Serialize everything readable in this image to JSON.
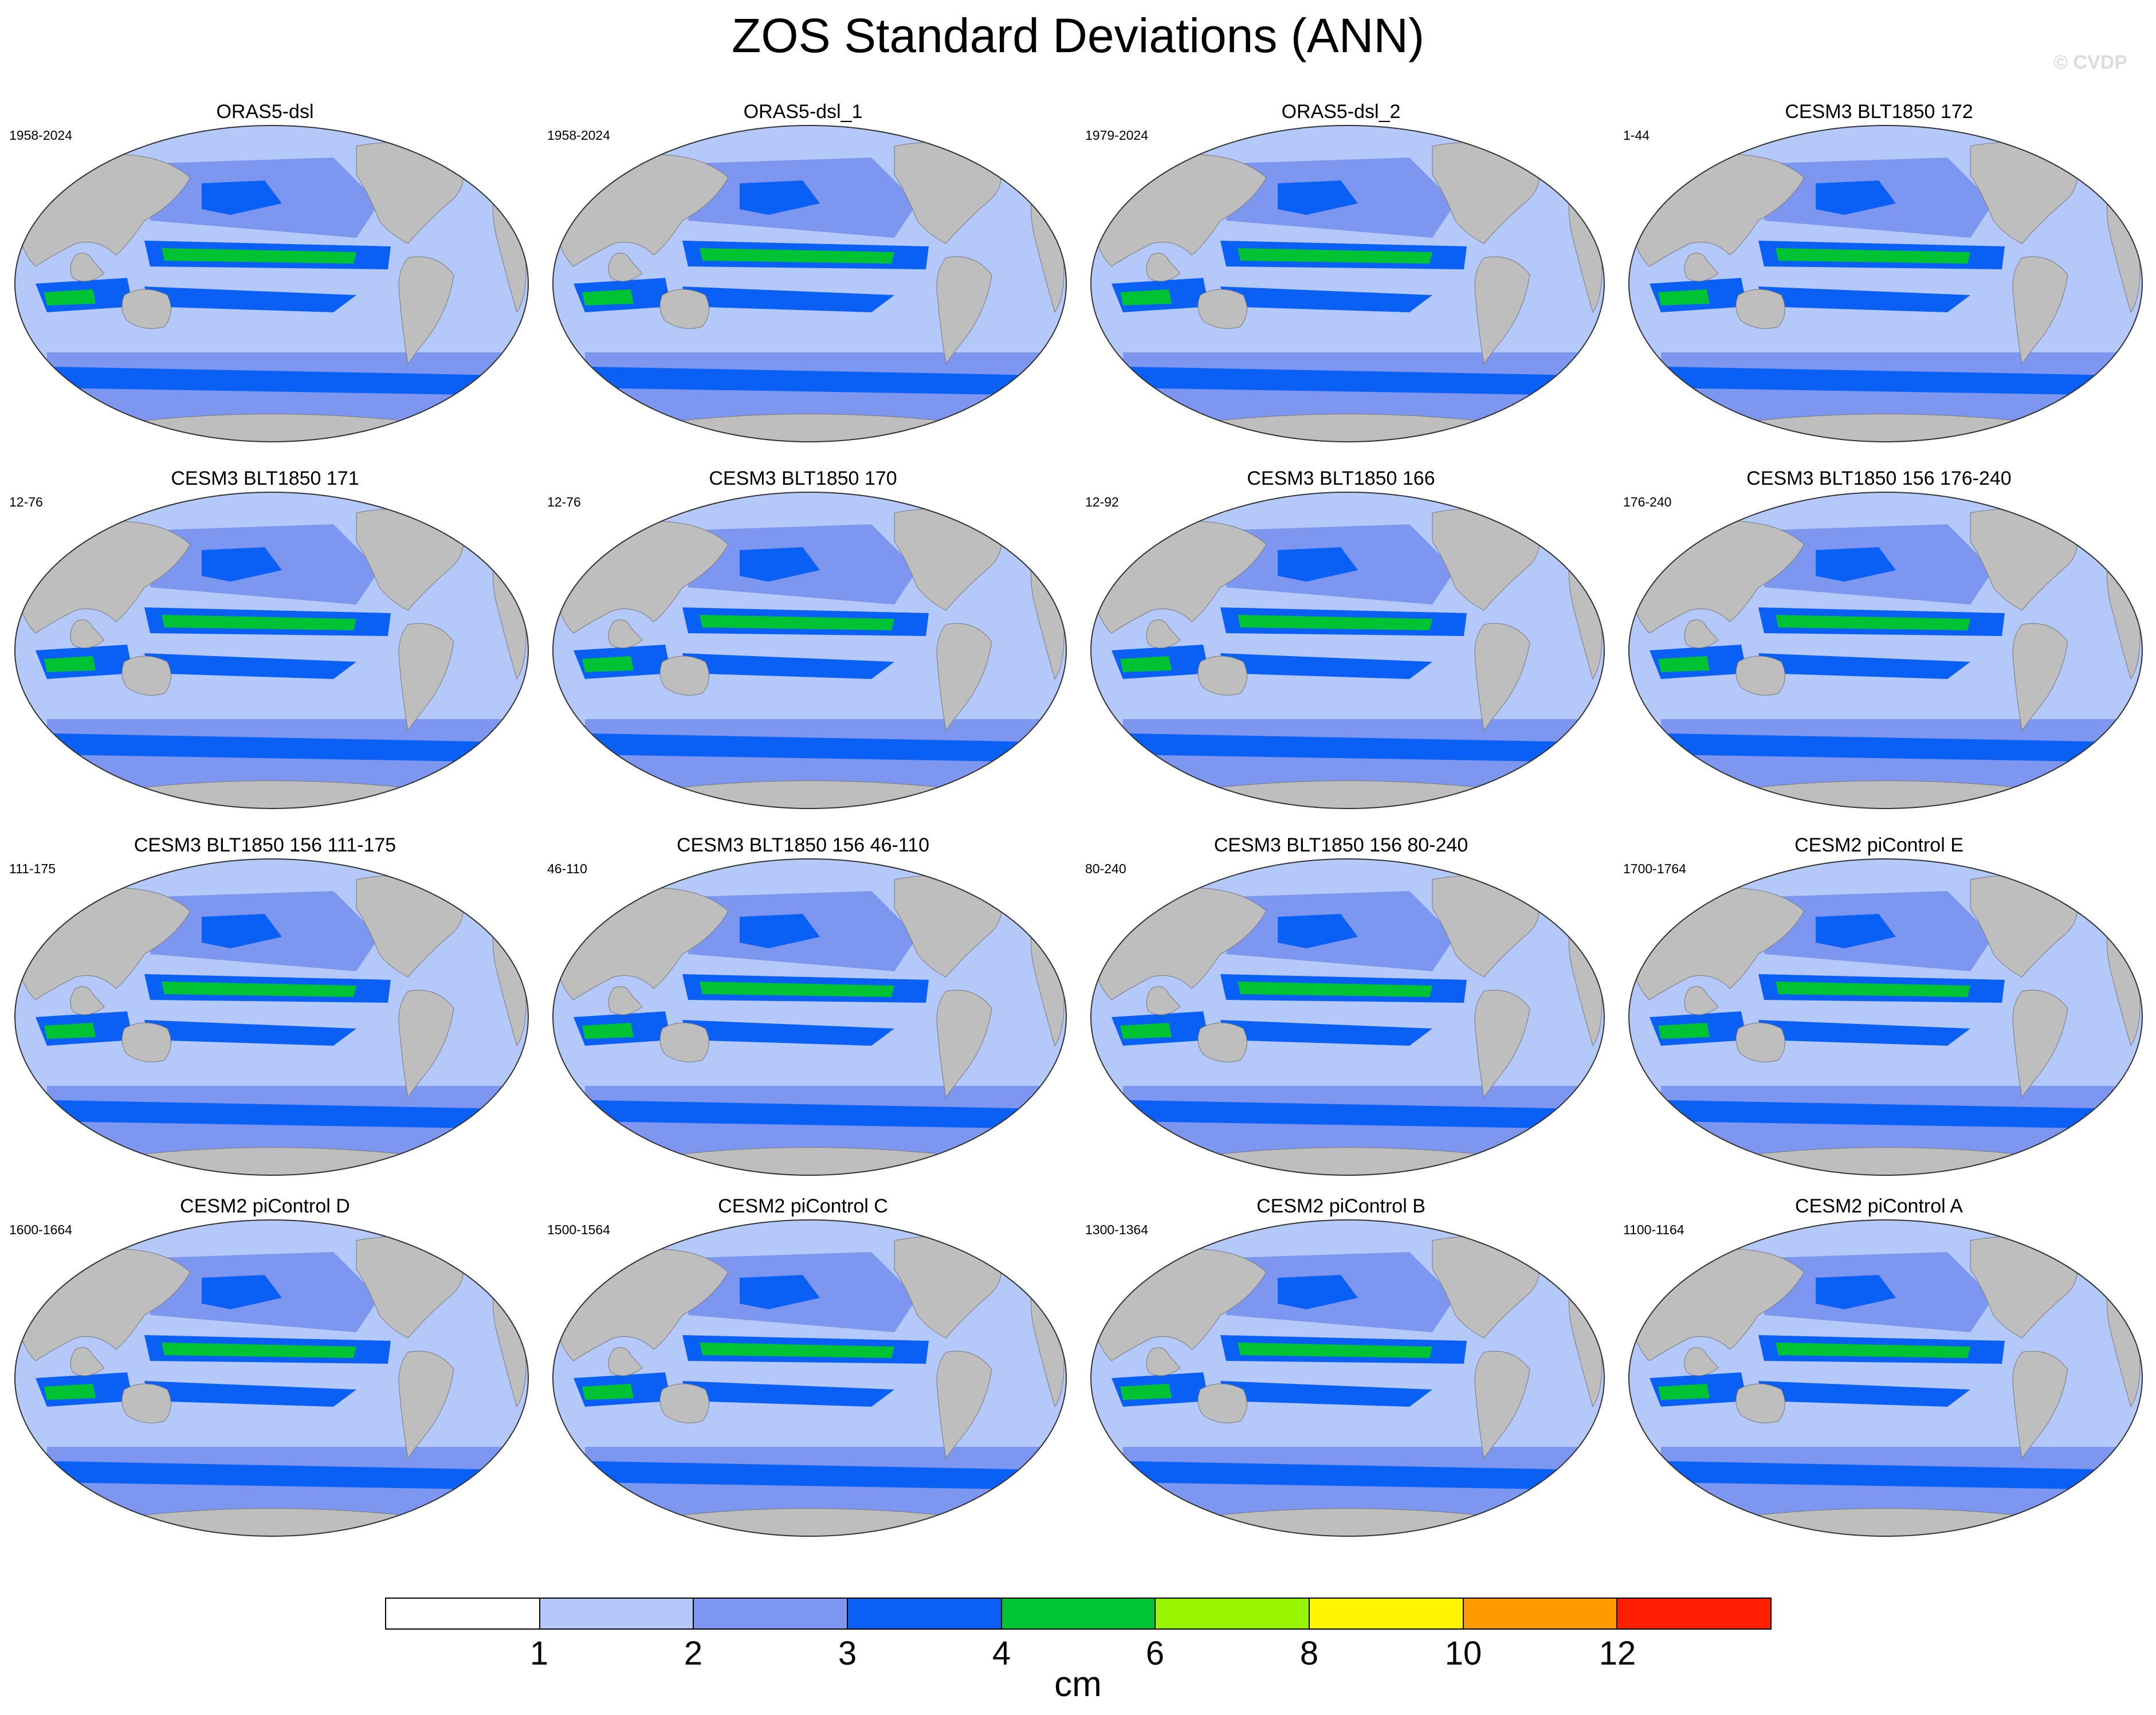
{
  "title": "ZOS Standard Deviations (ANN)",
  "watermark": "© CVDP",
  "colors": {
    "land": "#bebebe",
    "ocean_levels": [
      "#ffffff",
      "#b4c8fa",
      "#7d96f0",
      "#0a5ff5",
      "#00c333",
      "#98f500",
      "#fff500",
      "#ff9b00",
      "#ff1e00"
    ]
  },
  "panels": [
    {
      "title": "ORAS5-dsl",
      "years": "1958-2024"
    },
    {
      "title": "ORAS5-dsl_1",
      "years": "1958-2024"
    },
    {
      "title": "ORAS5-dsl_2",
      "years": "1979-2024"
    },
    {
      "title": "CESM3 BLT1850 172",
      "years": "1-44"
    },
    {
      "title": "CESM3 BLT1850 171",
      "years": "12-76"
    },
    {
      "title": "CESM3 BLT1850 170",
      "years": "12-76"
    },
    {
      "title": "CESM3 BLT1850 166",
      "years": "12-92"
    },
    {
      "title": "CESM3 BLT1850 156 176-240",
      "years": "176-240"
    },
    {
      "title": "CESM3 BLT1850 156 111-175",
      "years": "111-175"
    },
    {
      "title": "CESM3 BLT1850 156 46-110",
      "years": "46-110"
    },
    {
      "title": "CESM3 BLT1850 156 80-240",
      "years": "80-240"
    },
    {
      "title": "CESM2 piControl E",
      "years": "1700-1764"
    },
    {
      "title": "CESM2 piControl D",
      "years": "1600-1664"
    },
    {
      "title": "CESM2 piControl C",
      "years": "1500-1564"
    },
    {
      "title": "CESM2 piControl B",
      "years": "1300-1364"
    },
    {
      "title": "CESM2 piControl A",
      "years": "1100-1164"
    }
  ],
  "colorbar": {
    "labels": [
      "1",
      "2",
      "3",
      "4",
      "6",
      "8",
      "10",
      "12"
    ],
    "units": "cm"
  }
}
